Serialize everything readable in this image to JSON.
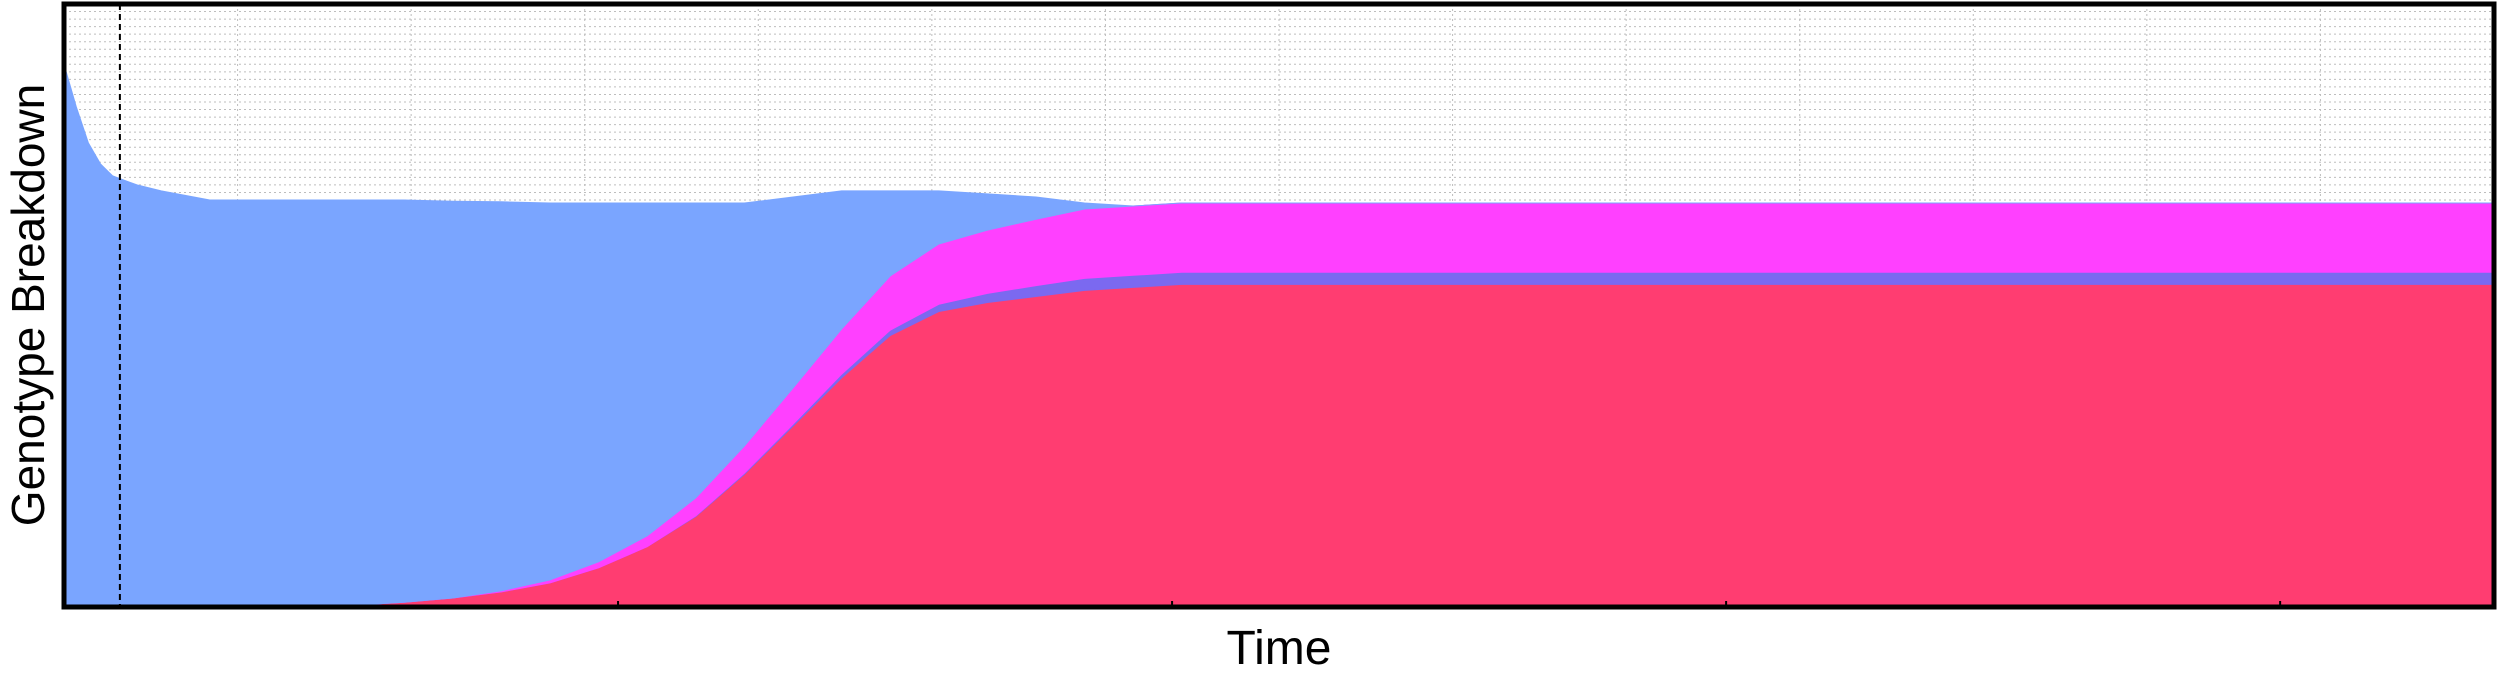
{
  "chart_data": {
    "type": "area",
    "stacked": true,
    "normalized": true,
    "title": "",
    "xlabel": "Time",
    "ylabel": "Genotype Breakdown",
    "xlim": [
      0,
      100
    ],
    "ylim": [
      0,
      1
    ],
    "grid": true,
    "legend": "none",
    "x_ticks_labeled": false,
    "y_ticks_labeled": false,
    "x": [
      0,
      0.5,
      1,
      1.5,
      2,
      3,
      4,
      6,
      8,
      10,
      12,
      14,
      16,
      18,
      20,
      22,
      24,
      26,
      28,
      30,
      32,
      34,
      36,
      38,
      40,
      42,
      44,
      46,
      48,
      50,
      55,
      60,
      65,
      70,
      75,
      80,
      85,
      90,
      95,
      100
    ],
    "series": [
      {
        "color": "#ff3d71",
        "values": [
          0,
          0,
          0,
          0,
          0,
          0,
          0,
          0,
          0,
          0,
          0.003,
          0.008,
          0.015,
          0.025,
          0.04,
          0.065,
          0.1,
          0.15,
          0.22,
          0.3,
          0.38,
          0.45,
          0.49,
          0.505,
          0.515,
          0.525,
          0.53,
          0.535,
          0.535,
          0.535,
          0.535,
          0.535,
          0.535,
          0.535,
          0.535,
          0.535,
          0.535,
          0.535,
          0.535,
          0.535
        ]
      },
      {
        "color": "#7b69f0",
        "values": [
          0,
          0,
          0,
          0,
          0,
          0,
          0,
          0,
          0,
          0,
          0,
          0,
          0,
          0,
          0,
          0,
          0,
          0.001,
          0.002,
          0.003,
          0.006,
          0.009,
          0.012,
          0.015,
          0.018,
          0.02,
          0.02,
          0.02,
          0.02,
          0.02,
          0.02,
          0.02,
          0.02,
          0.02,
          0.02,
          0.02,
          0.02,
          0.02,
          0.02,
          0.02
        ]
      },
      {
        "color": "#ff40ff",
        "values": [
          0,
          0,
          0,
          0,
          0,
          0,
          0,
          0,
          0,
          0,
          0,
          0,
          0,
          0.002,
          0.005,
          0.01,
          0.018,
          0.03,
          0.045,
          0.06,
          0.075,
          0.09,
          0.1,
          0.105,
          0.11,
          0.115,
          0.115,
          0.115,
          0.115,
          0.115,
          0.115,
          0.115,
          0.115,
          0.115,
          0.115,
          0.115,
          0.115,
          0.115,
          0.115,
          0.115
        ]
      },
      {
        "color": "#7aa5ff",
        "values": [
          0.9,
          0.83,
          0.77,
          0.735,
          0.715,
          0.7,
          0.69,
          0.675,
          0.675,
          0.675,
          0.672,
          0.667,
          0.658,
          0.645,
          0.625,
          0.595,
          0.552,
          0.489,
          0.403,
          0.317,
          0.229,
          0.141,
          0.088,
          0.06,
          0.037,
          0.01,
          0,
          0,
          0,
          0,
          0,
          0,
          0,
          0,
          0,
          0,
          0,
          0,
          0,
          0
        ]
      }
    ],
    "marker": {
      "x": 2.3,
      "style": "dashed",
      "color": "#000000"
    }
  }
}
